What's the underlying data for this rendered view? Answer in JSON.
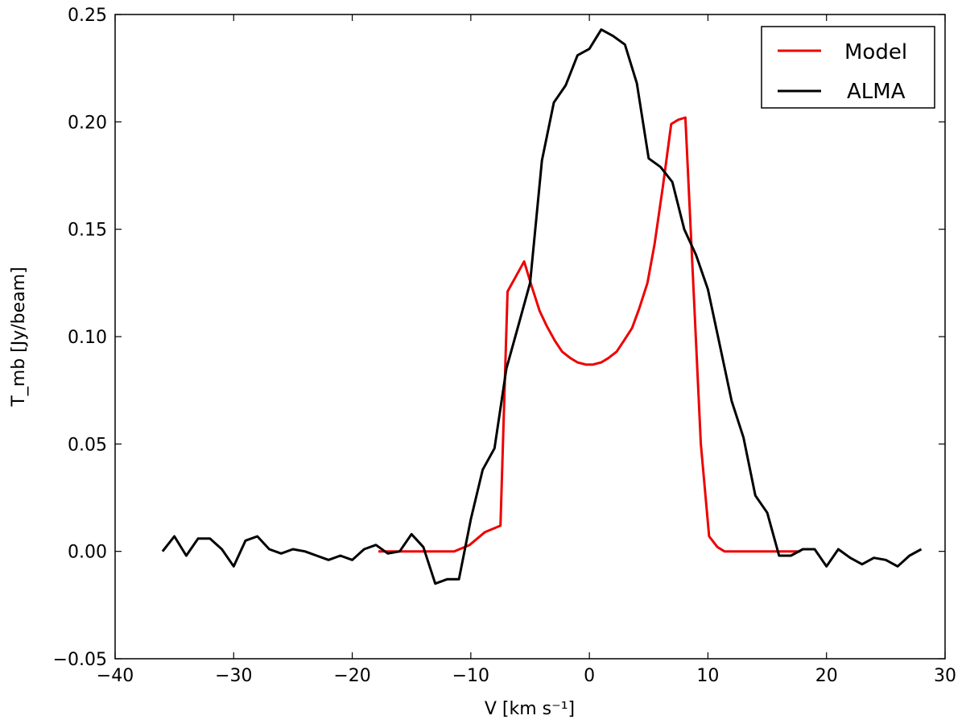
{
  "chart_data": {
    "type": "line",
    "xlabel": "V [km s⁻¹]",
    "ylabel": "T_mb [Jy/beam]",
    "xlim": [
      -40,
      30
    ],
    "ylim": [
      -0.05,
      0.25
    ],
    "xticks": [
      -40,
      -30,
      -20,
      -10,
      0,
      10,
      20,
      30
    ],
    "xtick_labels": [
      "−40",
      "−30",
      "−20",
      "−10",
      "0",
      "10",
      "20",
      "30"
    ],
    "yticks": [
      -0.05,
      0.0,
      0.05,
      0.1,
      0.15,
      0.2,
      0.25
    ],
    "ytick_labels": [
      "−0.05",
      "0.00",
      "0.05",
      "0.10",
      "0.15",
      "0.20",
      "0.25"
    ],
    "grid": false,
    "legend_position": "top-right",
    "series": [
      {
        "name": "Model",
        "color": "#ee0000",
        "x": [
          -17.8,
          -16.5,
          -15.2,
          -14.0,
          -12.7,
          -11.4,
          -10.1,
          -8.8,
          -7.5,
          -6.9,
          -6.2,
          -5.5,
          -4.9,
          -4.2,
          -3.6,
          -2.9,
          -2.3,
          -1.6,
          -1.0,
          -0.3,
          0.3,
          1.0,
          1.6,
          2.3,
          2.9,
          3.6,
          4.2,
          4.9,
          5.5,
          6.2,
          6.9,
          7.5,
          8.1,
          8.8,
          9.4,
          10.1,
          10.8,
          11.4,
          12.7,
          14.0,
          15.2,
          16.5,
          17.8
        ],
        "y": [
          0.0,
          0.0,
          0.0,
          0.0,
          0.0,
          0.0,
          0.003,
          0.009,
          0.012,
          0.121,
          0.128,
          0.135,
          0.124,
          0.112,
          0.105,
          0.098,
          0.093,
          0.09,
          0.088,
          0.087,
          0.087,
          0.088,
          0.09,
          0.093,
          0.098,
          0.104,
          0.113,
          0.125,
          0.143,
          0.17,
          0.199,
          0.201,
          0.202,
          0.12,
          0.05,
          0.007,
          0.002,
          0.0,
          0.0,
          0.0,
          0.0,
          0.0,
          0.0
        ]
      },
      {
        "name": "ALMA",
        "color": "#000000",
        "x": [
          -36.0,
          -35.0,
          -34.0,
          -33.0,
          -32.0,
          -31.0,
          -30.0,
          -29.0,
          -28.0,
          -27.0,
          -26.0,
          -25.0,
          -24.0,
          -23.0,
          -22.0,
          -21.0,
          -20.0,
          -19.0,
          -18.0,
          -17.0,
          -16.0,
          -15.0,
          -14.0,
          -13.0,
          -12.0,
          -11.0,
          -10.0,
          -9.0,
          -8.0,
          -7.0,
          -6.0,
          -5.0,
          -4.0,
          -3.0,
          -2.0,
          -1.0,
          0.0,
          1.0,
          2.0,
          3.0,
          4.0,
          5.0,
          6.0,
          7.0,
          8.0,
          9.0,
          10.0,
          11.0,
          12.0,
          13.0,
          14.0,
          15.0,
          16.0,
          17.0,
          18.0,
          19.0,
          20.0,
          21.0,
          22.0,
          23.0,
          24.0,
          25.0,
          26.0,
          27.0,
          28.0
        ],
        "y": [
          0.0,
          0.007,
          -0.002,
          0.006,
          0.006,
          0.001,
          -0.007,
          0.005,
          0.007,
          0.001,
          -0.001,
          0.001,
          0.0,
          -0.002,
          -0.004,
          -0.002,
          -0.004,
          0.001,
          0.003,
          -0.001,
          0.0,
          0.008,
          0.002,
          -0.015,
          -0.013,
          -0.013,
          0.015,
          0.038,
          0.048,
          0.085,
          0.105,
          0.125,
          0.182,
          0.209,
          0.217,
          0.231,
          0.234,
          0.243,
          0.24,
          0.236,
          0.218,
          0.183,
          0.179,
          0.172,
          0.15,
          0.138,
          0.122,
          0.096,
          0.07,
          0.053,
          0.026,
          0.018,
          -0.002,
          -0.002,
          0.001,
          0.001,
          -0.007,
          0.001,
          -0.003,
          -0.006,
          -0.003,
          -0.004,
          -0.007,
          -0.002,
          0.001
        ]
      }
    ]
  }
}
